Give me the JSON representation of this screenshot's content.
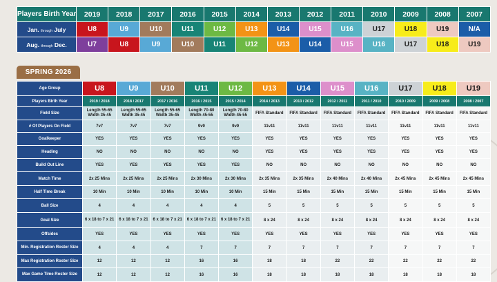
{
  "top": {
    "header_label": "Players Birth Year",
    "years": [
      "2019",
      "2018",
      "2017",
      "2016",
      "2015",
      "2014",
      "2013",
      "2012",
      "2011",
      "2010",
      "2009",
      "2008",
      "2007"
    ],
    "rows": [
      {
        "label_main": "Jan.",
        "label_mid": "through",
        "label_end": "July",
        "cells": [
          "U8",
          "U9",
          "U10",
          "U11",
          "U12",
          "U13",
          "U14",
          "U15",
          "U16",
          "U17",
          "U18",
          "U19",
          "N/A"
        ]
      },
      {
        "label_main": "Aug.",
        "label_mid": "through",
        "label_end": "Dec.",
        "cells": [
          "U7",
          "U8",
          "U9",
          "U10",
          "U11",
          "U12",
          "U13",
          "U14",
          "U15",
          "U16",
          "U17",
          "U18",
          "U19"
        ]
      }
    ]
  },
  "season_tag": "SPRING 2026",
  "grid": {
    "age_group_label": "Age Group",
    "age_groups": [
      "U8",
      "U9",
      "U10",
      "U11",
      "U12",
      "U13",
      "U14",
      "U15",
      "U16",
      "U17",
      "U18",
      "U19"
    ],
    "rows": [
      {
        "label": "Players Birth Year",
        "values": [
          "2019 / 2018",
          "2018 / 2017",
          "2017 / 2016",
          "2016 / 2015",
          "2015 / 2014",
          "2014 / 2013",
          "2013 / 2012",
          "2012 / 2011",
          "2011 / 2010",
          "2010 / 2009",
          "2009 / 2008",
          "2008 / 2007"
        ]
      },
      {
        "label": "Field Size",
        "values": [
          "Length 55-65 Width 35-45",
          "Length 55-65 Width 35-45",
          "Length 55-65 Width 35-45",
          "Length 70-80 Width 45-55",
          "Length 70-80 Width 45-55",
          "FIFA Standard",
          "FIFA Standard",
          "FIFA Standard",
          "FIFA Standard",
          "FIFA Standard",
          "FIFA Standard",
          "FIFA Standard"
        ]
      },
      {
        "label": "# Of Players On Field",
        "values": [
          "7v7",
          "7v7",
          "7v7",
          "9v9",
          "9v9",
          "11v11",
          "11v11",
          "11v11",
          "11v11",
          "11v11",
          "11v11",
          "11v11"
        ]
      },
      {
        "label": "Goalkeeper",
        "values": [
          "YES",
          "YES",
          "YES",
          "YES",
          "YES",
          "YES",
          "YES",
          "YES",
          "YES",
          "YES",
          "YES",
          "YES"
        ]
      },
      {
        "label": "Heading",
        "values": [
          "NO",
          "NO",
          "NO",
          "NO",
          "NO",
          "YES",
          "YES",
          "YES",
          "YES",
          "YES",
          "YES",
          "YES"
        ]
      },
      {
        "label": "Build Out Line",
        "values": [
          "YES",
          "YES",
          "YES",
          "YES",
          "YES",
          "NO",
          "NO",
          "NO",
          "NO",
          "NO",
          "NO",
          "NO"
        ]
      },
      {
        "label": "Match Time",
        "values": [
          "2x 25 Mins",
          "2x 25 Mins",
          "2x 25 Mins",
          "2x 30 Mins",
          "2x 30 Mins",
          "2x 35 Mins",
          "2x 35 Mins",
          "2x 40 Mins",
          "2x 40 Mins",
          "2x 45 Mins",
          "2x 45 Mins",
          "2x 45 Mins"
        ]
      },
      {
        "label": "Half Time Break",
        "values": [
          "10 Min",
          "10 Min",
          "10 Min",
          "10 Min",
          "10 Min",
          "15 Min",
          "15 Min",
          "15 Min",
          "15 Min",
          "15 Min",
          "15 Min",
          "15 Min"
        ]
      },
      {
        "label": "Ball Size",
        "values": [
          "4",
          "4",
          "4",
          "4",
          "4",
          "5",
          "5",
          "5",
          "5",
          "5",
          "5",
          "5"
        ]
      },
      {
        "label": "Goal Size",
        "values": [
          "6 x 18 to 7 x 21",
          "6 x 18 to 7 x 21",
          "6 x 18 to 7 x 21",
          "6 x 18 to 7 x 21",
          "6 x 18 to 7 x 21",
          "8 x 24",
          "8 x 24",
          "8 x 24",
          "8 x 24",
          "8 x 24",
          "8 x 24",
          "8 x 24"
        ]
      },
      {
        "label": "Offsides",
        "values": [
          "YES",
          "YES",
          "YES",
          "YES",
          "YES",
          "YES",
          "YES",
          "YES",
          "YES",
          "YES",
          "YES",
          "YES"
        ]
      },
      {
        "label": "Min. Registration Roster Size",
        "values": [
          "4",
          "4",
          "4",
          "7",
          "7",
          "7",
          "7",
          "7",
          "7",
          "7",
          "7",
          "7"
        ]
      },
      {
        "label": "Max Registration Roster Size",
        "values": [
          "12",
          "12",
          "12",
          "16",
          "16",
          "18",
          "18",
          "22",
          "22",
          "22",
          "22",
          "22"
        ]
      },
      {
        "label": "Max Game Time Roster Size",
        "values": [
          "12",
          "12",
          "12",
          "16",
          "16",
          "18",
          "18",
          "18",
          "18",
          "18",
          "18",
          "18"
        ]
      }
    ]
  },
  "colors": {
    "U7": "#7e3f9c",
    "U8": "#c8151d",
    "U9": "#58a9d6",
    "U10": "#a27b5c",
    "U11": "#188476",
    "U12": "#6db944",
    "U13": "#f39316",
    "U14": "#1b5da8",
    "U15": "#dd8fcb",
    "U16": "#58b3c4",
    "U17": "#cdd2d6",
    "U18": "#f7ec1a",
    "U19": "#eec9c0",
    "N/A": "#1b5da8",
    "header_teal": "#19786f",
    "label_navy": "#234b8a",
    "season_tag": "#9a6e45"
  },
  "text_dark": [
    "U17",
    "U18",
    "U19"
  ]
}
